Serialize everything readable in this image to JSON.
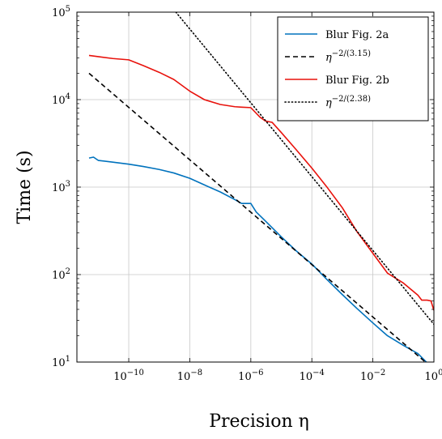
{
  "chart_data": {
    "type": "line",
    "xlabel": "Precision η",
    "ylabel": "Time (s)",
    "x_scale": "log",
    "y_scale": "log",
    "xlim": [
      2e-12,
      1
    ],
    "ylim": [
      10,
      100000
    ],
    "grid": true,
    "legend_position": "top-right",
    "x_ticks": [
      {
        "value": 1e-10,
        "base": "10",
        "exp": "−10"
      },
      {
        "value": 1e-08,
        "base": "10",
        "exp": "−8"
      },
      {
        "value": 1e-06,
        "base": "10",
        "exp": "−6"
      },
      {
        "value": 0.0001,
        "base": "10",
        "exp": "−4"
      },
      {
        "value": 0.01,
        "base": "10",
        "exp": "−2"
      },
      {
        "value": 1,
        "base": "10",
        "exp": "0"
      }
    ],
    "y_ticks": [
      {
        "value": 10,
        "base": "10",
        "exp": "1"
      },
      {
        "value": 100,
        "base": "10",
        "exp": "2"
      },
      {
        "value": 1000,
        "base": "10",
        "exp": "3"
      },
      {
        "value": 10000,
        "base": "10",
        "exp": "4"
      },
      {
        "value": 100000,
        "base": "10",
        "exp": "5"
      }
    ],
    "series": [
      {
        "name": "Blur Fig. 2a",
        "color": "#0072bd",
        "dash": "solid",
        "x": [
          5e-12,
          7e-12,
          1e-11,
          3e-11,
          1e-10,
          3e-10,
          1e-09,
          3e-09,
          1e-08,
          3e-08,
          1e-07,
          3e-07,
          5e-07,
          1e-06,
          1.5e-06,
          3e-06,
          1e-05,
          3e-05,
          0.0001,
          0.0003,
          0.001,
          0.003,
          0.01,
          0.03,
          0.1,
          0.3,
          0.6
        ],
        "y": [
          2150,
          2200,
          2020,
          1930,
          1830,
          1720,
          1590,
          1450,
          1260,
          1060,
          880,
          720,
          650,
          650,
          520,
          410,
          270,
          188,
          132,
          89,
          59,
          41,
          28,
          20,
          15.5,
          12.5,
          9.8
        ]
      },
      {
        "name": "η^{−2/(3.15)}",
        "color": "#000000",
        "dash": "dashed",
        "x": [
          5e-12,
          0.6
        ],
        "y": [
          20000,
          9.6
        ]
      },
      {
        "name": "Blur Fig. 2b",
        "color": "#e8120c",
        "dash": "solid",
        "x": [
          5e-12,
          1e-11,
          3e-11,
          1e-10,
          3e-10,
          1e-09,
          3e-09,
          1e-08,
          3e-08,
          1e-07,
          3e-07,
          5e-07,
          1e-06,
          2e-06,
          3e-06,
          5e-06,
          1e-05,
          3e-05,
          0.0001,
          0.0003,
          0.001,
          0.003,
          0.01,
          0.03,
          0.1,
          0.3,
          0.4,
          0.6,
          0.8,
          1
        ],
        "y": [
          32000,
          31000,
          29500,
          28500,
          24500,
          20500,
          17000,
          12500,
          10000,
          8800,
          8300,
          8200,
          8100,
          6300,
          5700,
          5500,
          4200,
          2700,
          1650,
          1020,
          580,
          310,
          175,
          104,
          80,
          58,
          51,
          51,
          50,
          39
        ]
      },
      {
        "name": "η^{−2/(2.38)}",
        "color": "#000000",
        "dash": "dotted",
        "x": [
          3.5e-09,
          1
        ],
        "y": [
          100000,
          27
        ]
      }
    ]
  }
}
